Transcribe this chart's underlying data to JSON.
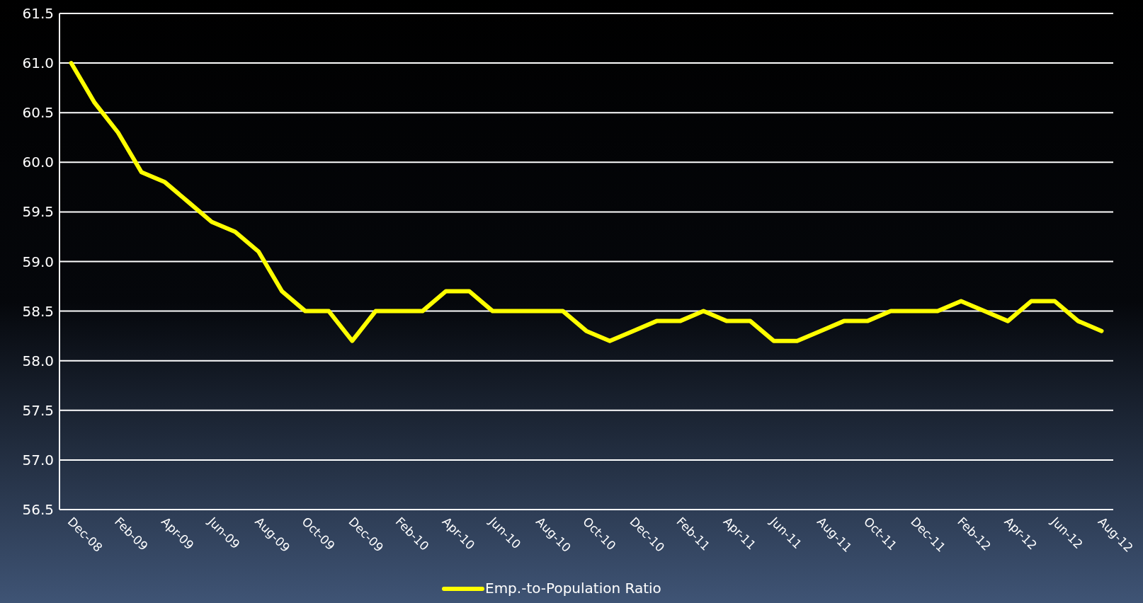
{
  "chart_data": {
    "type": "line",
    "categories": [
      "Dec-08",
      null,
      "Feb-09",
      null,
      "Apr-09",
      null,
      "Jun-09",
      null,
      "Aug-09",
      null,
      "Oct-09",
      null,
      "Dec-09",
      null,
      "Feb-10",
      null,
      "Apr-10",
      null,
      "Jun-10",
      null,
      "Aug-10",
      null,
      "Oct-10",
      null,
      "Dec-10",
      null,
      "Feb-11",
      null,
      "Apr-11",
      null,
      "Jun-11",
      null,
      "Aug-11",
      null,
      "Oct-11",
      null,
      "Dec-11",
      null,
      "Feb-12",
      null,
      "Apr-12",
      null,
      "Jun-12",
      null,
      "Aug-12"
    ],
    "series": [
      {
        "name": "Emp.-to-Population Ratio",
        "color": "#ffff00",
        "values": [
          61.0,
          60.6,
          60.3,
          59.9,
          59.8,
          59.6,
          59.4,
          59.3,
          59.1,
          58.7,
          58.5,
          58.5,
          58.2,
          58.5,
          58.5,
          58.5,
          58.7,
          58.7,
          58.5,
          58.5,
          58.5,
          58.5,
          58.3,
          58.2,
          58.3,
          58.4,
          58.4,
          58.5,
          58.4,
          58.4,
          58.2,
          58.2,
          58.3,
          58.4,
          58.4,
          58.5,
          58.5,
          58.5,
          58.6,
          58.5,
          58.4,
          58.6,
          58.6,
          58.4,
          58.3
        ]
      }
    ],
    "ylim": [
      56.5,
      61.5
    ],
    "yticks": [
      {
        "value": 56.5,
        "label": "56.5"
      },
      {
        "value": 57,
        "label": "57.0"
      },
      {
        "value": 57.5,
        "label": "57.5"
      },
      {
        "value": 58,
        "label": "58.0"
      },
      {
        "value": 58.5,
        "label": "58.5"
      },
      {
        "value": 59,
        "label": "59.0"
      },
      {
        "value": 59.5,
        "label": "59.5"
      },
      {
        "value": 60,
        "label": "60.0"
      },
      {
        "value": 60.5,
        "label": "60.5"
      },
      {
        "value": 61,
        "label": "61.0"
      },
      {
        "value": 61.5,
        "label": "61.5"
      }
    ],
    "grid": "y",
    "legend": "bottom",
    "marker": "none",
    "line_style": "solid"
  }
}
